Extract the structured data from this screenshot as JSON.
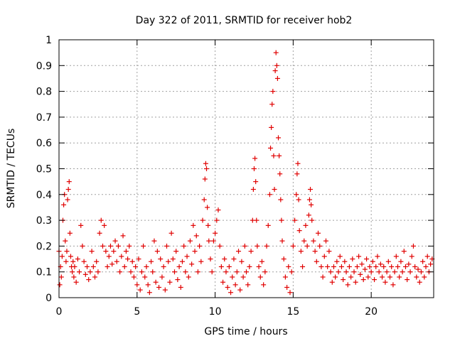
{
  "chart_data": {
    "type": "scatter",
    "marker": "+",
    "title": "Day 322 of 2011, SRMTID for receiver hob2",
    "xlabel": "GPS time / hours",
    "ylabel": "SRMTID / TECUs",
    "xlim": [
      0,
      24
    ],
    "ylim": [
      0,
      1
    ],
    "xticks": [
      0,
      5,
      10,
      15,
      20
    ],
    "yticks": [
      0,
      0.1,
      0.2,
      0.3,
      0.4,
      0.5,
      0.6,
      0.7,
      0.8,
      0.9,
      1
    ],
    "grid": true,
    "color": "#e00000",
    "series": [
      {
        "name": "SRMTID hob2",
        "points": [
          [
            0.0,
            0.18
          ],
          [
            0.05,
            0.05
          ],
          [
            0.1,
            0.12
          ],
          [
            0.15,
            0.08
          ],
          [
            0.2,
            0.16
          ],
          [
            0.25,
            0.3
          ],
          [
            0.3,
            0.36
          ],
          [
            0.35,
            0.4
          ],
          [
            0.4,
            0.22
          ],
          [
            0.45,
            0.14
          ],
          [
            0.5,
            0.18
          ],
          [
            0.55,
            0.38
          ],
          [
            0.6,
            0.42
          ],
          [
            0.65,
            0.45
          ],
          [
            0.7,
            0.25
          ],
          [
            0.75,
            0.16
          ],
          [
            0.8,
            0.12
          ],
          [
            0.85,
            0.1
          ],
          [
            0.9,
            0.14
          ],
          [
            0.95,
            0.08
          ],
          [
            1.0,
            0.12
          ],
          [
            1.1,
            0.06
          ],
          [
            1.2,
            0.15
          ],
          [
            1.3,
            0.1
          ],
          [
            1.4,
            0.28
          ],
          [
            1.5,
            0.2
          ],
          [
            1.6,
            0.14
          ],
          [
            1.7,
            0.09
          ],
          [
            1.8,
            0.12
          ],
          [
            1.9,
            0.07
          ],
          [
            2.0,
            0.1
          ],
          [
            2.1,
            0.18
          ],
          [
            2.2,
            0.12
          ],
          [
            2.3,
            0.08
          ],
          [
            2.4,
            0.14
          ],
          [
            2.5,
            0.1
          ],
          [
            2.6,
            0.25
          ],
          [
            2.7,
            0.3
          ],
          [
            2.8,
            0.2
          ],
          [
            2.9,
            0.28
          ],
          [
            3.0,
            0.18
          ],
          [
            3.1,
            0.12
          ],
          [
            3.2,
            0.16
          ],
          [
            3.3,
            0.2
          ],
          [
            3.4,
            0.13
          ],
          [
            3.5,
            0.18
          ],
          [
            3.6,
            0.22
          ],
          [
            3.7,
            0.14
          ],
          [
            3.8,
            0.2
          ],
          [
            3.9,
            0.1
          ],
          [
            4.0,
            0.16
          ],
          [
            4.1,
            0.24
          ],
          [
            4.2,
            0.12
          ],
          [
            4.3,
            0.18
          ],
          [
            4.4,
            0.15
          ],
          [
            4.5,
            0.2
          ],
          [
            4.6,
            0.1
          ],
          [
            4.7,
            0.14
          ],
          [
            4.8,
            0.08
          ],
          [
            4.9,
            0.12
          ],
          [
            5.0,
            0.05
          ],
          [
            5.1,
            0.15
          ],
          [
            5.2,
            0.03
          ],
          [
            5.3,
            0.1
          ],
          [
            5.4,
            0.2
          ],
          [
            5.5,
            0.08
          ],
          [
            5.6,
            0.12
          ],
          [
            5.7,
            0.05
          ],
          [
            5.8,
            0.02
          ],
          [
            5.9,
            0.14
          ],
          [
            6.0,
            0.1
          ],
          [
            6.1,
            0.22
          ],
          [
            6.2,
            0.06
          ],
          [
            6.3,
            0.18
          ],
          [
            6.4,
            0.04
          ],
          [
            6.5,
            0.15
          ],
          [
            6.6,
            0.08
          ],
          [
            6.7,
            0.12
          ],
          [
            6.8,
            0.03
          ],
          [
            6.9,
            0.2
          ],
          [
            7.0,
            0.14
          ],
          [
            7.1,
            0.06
          ],
          [
            7.2,
            0.25
          ],
          [
            7.3,
            0.15
          ],
          [
            7.4,
            0.1
          ],
          [
            7.5,
            0.18
          ],
          [
            7.6,
            0.07
          ],
          [
            7.7,
            0.12
          ],
          [
            7.8,
            0.04
          ],
          [
            7.9,
            0.14
          ],
          [
            8.0,
            0.2
          ],
          [
            8.1,
            0.1
          ],
          [
            8.2,
            0.16
          ],
          [
            8.3,
            0.08
          ],
          [
            8.4,
            0.22
          ],
          [
            8.5,
            0.13
          ],
          [
            8.6,
            0.28
          ],
          [
            8.7,
            0.18
          ],
          [
            8.8,
            0.24
          ],
          [
            8.9,
            0.1
          ],
          [
            9.0,
            0.2
          ],
          [
            9.1,
            0.14
          ],
          [
            9.2,
            0.3
          ],
          [
            9.3,
            0.38
          ],
          [
            9.35,
            0.46
          ],
          [
            9.4,
            0.52
          ],
          [
            9.45,
            0.5
          ],
          [
            9.5,
            0.35
          ],
          [
            9.55,
            0.28
          ],
          [
            9.6,
            0.22
          ],
          [
            9.7,
            0.15
          ],
          [
            9.8,
            0.1
          ],
          [
            9.9,
            0.22
          ],
          [
            10.0,
            0.25
          ],
          [
            10.1,
            0.3
          ],
          [
            10.2,
            0.34
          ],
          [
            10.3,
            0.2
          ],
          [
            10.4,
            0.12
          ],
          [
            10.5,
            0.06
          ],
          [
            10.6,
            0.15
          ],
          [
            10.7,
            0.1
          ],
          [
            10.8,
            0.04
          ],
          [
            10.9,
            0.12
          ],
          [
            11.0,
            0.02
          ],
          [
            11.1,
            0.08
          ],
          [
            11.2,
            0.15
          ],
          [
            11.3,
            0.05
          ],
          [
            11.4,
            0.1
          ],
          [
            11.5,
            0.18
          ],
          [
            11.6,
            0.03
          ],
          [
            11.7,
            0.14
          ],
          [
            11.8,
            0.08
          ],
          [
            11.9,
            0.2
          ],
          [
            12.0,
            0.1
          ],
          [
            12.1,
            0.05
          ],
          [
            12.2,
            0.12
          ],
          [
            12.3,
            0.18
          ],
          [
            12.4,
            0.3
          ],
          [
            12.45,
            0.42
          ],
          [
            12.5,
            0.5
          ],
          [
            12.55,
            0.54
          ],
          [
            12.6,
            0.45
          ],
          [
            12.65,
            0.3
          ],
          [
            12.7,
            0.2
          ],
          [
            12.8,
            0.12
          ],
          [
            12.9,
            0.08
          ],
          [
            13.0,
            0.14
          ],
          [
            13.1,
            0.05
          ],
          [
            13.2,
            0.1
          ],
          [
            13.3,
            0.2
          ],
          [
            13.4,
            0.28
          ],
          [
            13.5,
            0.4
          ],
          [
            13.55,
            0.58
          ],
          [
            13.6,
            0.66
          ],
          [
            13.65,
            0.75
          ],
          [
            13.7,
            0.8
          ],
          [
            13.75,
            0.55
          ],
          [
            13.8,
            0.42
          ],
          [
            13.85,
            0.88
          ],
          [
            13.9,
            0.95
          ],
          [
            13.95,
            0.9
          ],
          [
            14.0,
            0.85
          ],
          [
            14.05,
            0.62
          ],
          [
            14.1,
            0.55
          ],
          [
            14.15,
            0.48
          ],
          [
            14.2,
            0.38
          ],
          [
            14.25,
            0.3
          ],
          [
            14.3,
            0.22
          ],
          [
            14.4,
            0.15
          ],
          [
            14.5,
            0.08
          ],
          [
            14.6,
            0.04
          ],
          [
            14.7,
            0.12
          ],
          [
            14.8,
            0.02
          ],
          [
            14.9,
            0.1
          ],
          [
            15.0,
            0.2
          ],
          [
            15.1,
            0.3
          ],
          [
            15.2,
            0.4
          ],
          [
            15.25,
            0.48
          ],
          [
            15.3,
            0.52
          ],
          [
            15.35,
            0.38
          ],
          [
            15.4,
            0.26
          ],
          [
            15.5,
            0.18
          ],
          [
            15.6,
            0.12
          ],
          [
            15.7,
            0.22
          ],
          [
            15.8,
            0.28
          ],
          [
            15.9,
            0.2
          ],
          [
            16.0,
            0.32
          ],
          [
            16.05,
            0.38
          ],
          [
            16.1,
            0.42
          ],
          [
            16.15,
            0.36
          ],
          [
            16.2,
            0.3
          ],
          [
            16.3,
            0.22
          ],
          [
            16.4,
            0.18
          ],
          [
            16.5,
            0.14
          ],
          [
            16.6,
            0.25
          ],
          [
            16.7,
            0.2
          ],
          [
            16.8,
            0.12
          ],
          [
            16.9,
            0.08
          ],
          [
            17.0,
            0.16
          ],
          [
            17.1,
            0.22
          ],
          [
            17.2,
            0.12
          ],
          [
            17.3,
            0.18
          ],
          [
            17.4,
            0.1
          ],
          [
            17.5,
            0.06
          ],
          [
            17.6,
            0.12
          ],
          [
            17.7,
            0.08
          ],
          [
            17.8,
            0.14
          ],
          [
            17.9,
            0.1
          ],
          [
            18.0,
            0.16
          ],
          [
            18.1,
            0.12
          ],
          [
            18.2,
            0.07
          ],
          [
            18.3,
            0.14
          ],
          [
            18.4,
            0.1
          ],
          [
            18.5,
            0.05
          ],
          [
            18.6,
            0.12
          ],
          [
            18.7,
            0.08
          ],
          [
            18.8,
            0.15
          ],
          [
            18.9,
            0.1
          ],
          [
            19.0,
            0.06
          ],
          [
            19.1,
            0.12
          ],
          [
            19.2,
            0.16
          ],
          [
            19.3,
            0.09
          ],
          [
            19.4,
            0.13
          ],
          [
            19.5,
            0.07
          ],
          [
            19.6,
            0.11
          ],
          [
            19.7,
            0.15
          ],
          [
            19.8,
            0.08
          ],
          [
            19.9,
            0.12
          ],
          [
            20.0,
            0.1
          ],
          [
            20.1,
            0.14
          ],
          [
            20.2,
            0.07
          ],
          [
            20.3,
            0.12
          ],
          [
            20.4,
            0.16
          ],
          [
            20.5,
            0.1
          ],
          [
            20.6,
            0.13
          ],
          [
            20.7,
            0.08
          ],
          [
            20.8,
            0.12
          ],
          [
            20.9,
            0.06
          ],
          [
            21.0,
            0.1
          ],
          [
            21.1,
            0.14
          ],
          [
            21.2,
            0.08
          ],
          [
            21.3,
            0.12
          ],
          [
            21.4,
            0.05
          ],
          [
            21.5,
            0.1
          ],
          [
            21.6,
            0.16
          ],
          [
            21.7,
            0.12
          ],
          [
            21.8,
            0.08
          ],
          [
            21.9,
            0.14
          ],
          [
            22.0,
            0.1
          ],
          [
            22.1,
            0.18
          ],
          [
            22.2,
            0.12
          ],
          [
            22.3,
            0.07
          ],
          [
            22.4,
            0.13
          ],
          [
            22.5,
            0.1
          ],
          [
            22.6,
            0.16
          ],
          [
            22.7,
            0.2
          ],
          [
            22.8,
            0.12
          ],
          [
            22.9,
            0.08
          ],
          [
            23.0,
            0.11
          ],
          [
            23.1,
            0.06
          ],
          [
            23.2,
            0.1
          ],
          [
            23.3,
            0.14
          ],
          [
            23.4,
            0.08
          ],
          [
            23.5,
            0.12
          ],
          [
            23.6,
            0.16
          ],
          [
            23.7,
            0.1
          ],
          [
            23.8,
            0.13
          ],
          [
            23.9,
            0.15
          ]
        ]
      }
    ]
  }
}
